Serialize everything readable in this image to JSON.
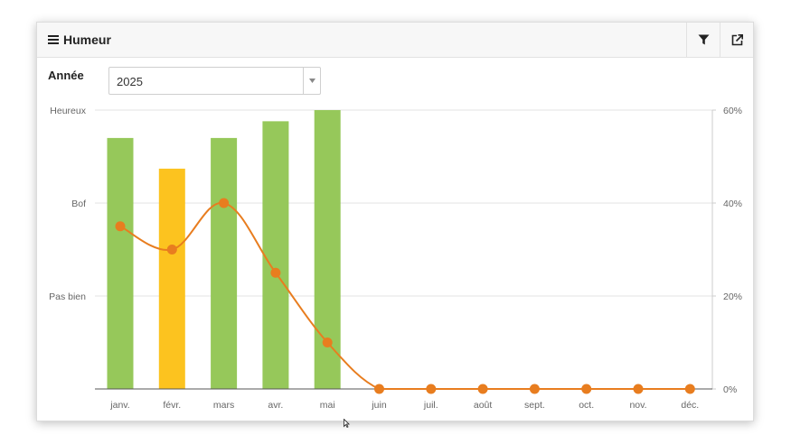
{
  "panel": {
    "title": "Humeur",
    "icons": {
      "menu": "menu-icon",
      "filter": "filter-icon",
      "external": "external-link-icon"
    }
  },
  "year_filter": {
    "label": "Année",
    "value": "2025"
  },
  "chart_data": {
    "type": "bar",
    "categories": [
      "janv.",
      "févr.",
      "mars",
      "avr.",
      "mai",
      "juin",
      "juil.",
      "août",
      "sept.",
      "oct.",
      "nov.",
      "déc."
    ],
    "left_axis": {
      "ticks": [
        {
          "label": "Heureux",
          "value": 3
        },
        {
          "label": "Bof",
          "value": 2
        },
        {
          "label": "Pas bien",
          "value": 1
        }
      ],
      "min": 0,
      "max": 3
    },
    "right_axis": {
      "ticks": [
        "60%",
        "40%",
        "20%",
        "0%"
      ],
      "min": 0,
      "max": 60
    },
    "series": [
      {
        "type": "bar",
        "axis": "left",
        "values": [
          2.7,
          2.37,
          2.7,
          2.88,
          3.0,
          null,
          null,
          null,
          null,
          null,
          null,
          null
        ],
        "colors": [
          "#96c85a",
          "#fcc31f",
          "#96c85a",
          "#96c85a",
          "#96c85a"
        ]
      },
      {
        "type": "line",
        "axis": "right",
        "values": [
          35,
          30,
          40,
          25,
          10,
          0,
          0,
          0,
          0,
          0,
          0,
          0
        ],
        "color": "#e87d1f"
      }
    ],
    "grid": true,
    "legend": "none"
  }
}
